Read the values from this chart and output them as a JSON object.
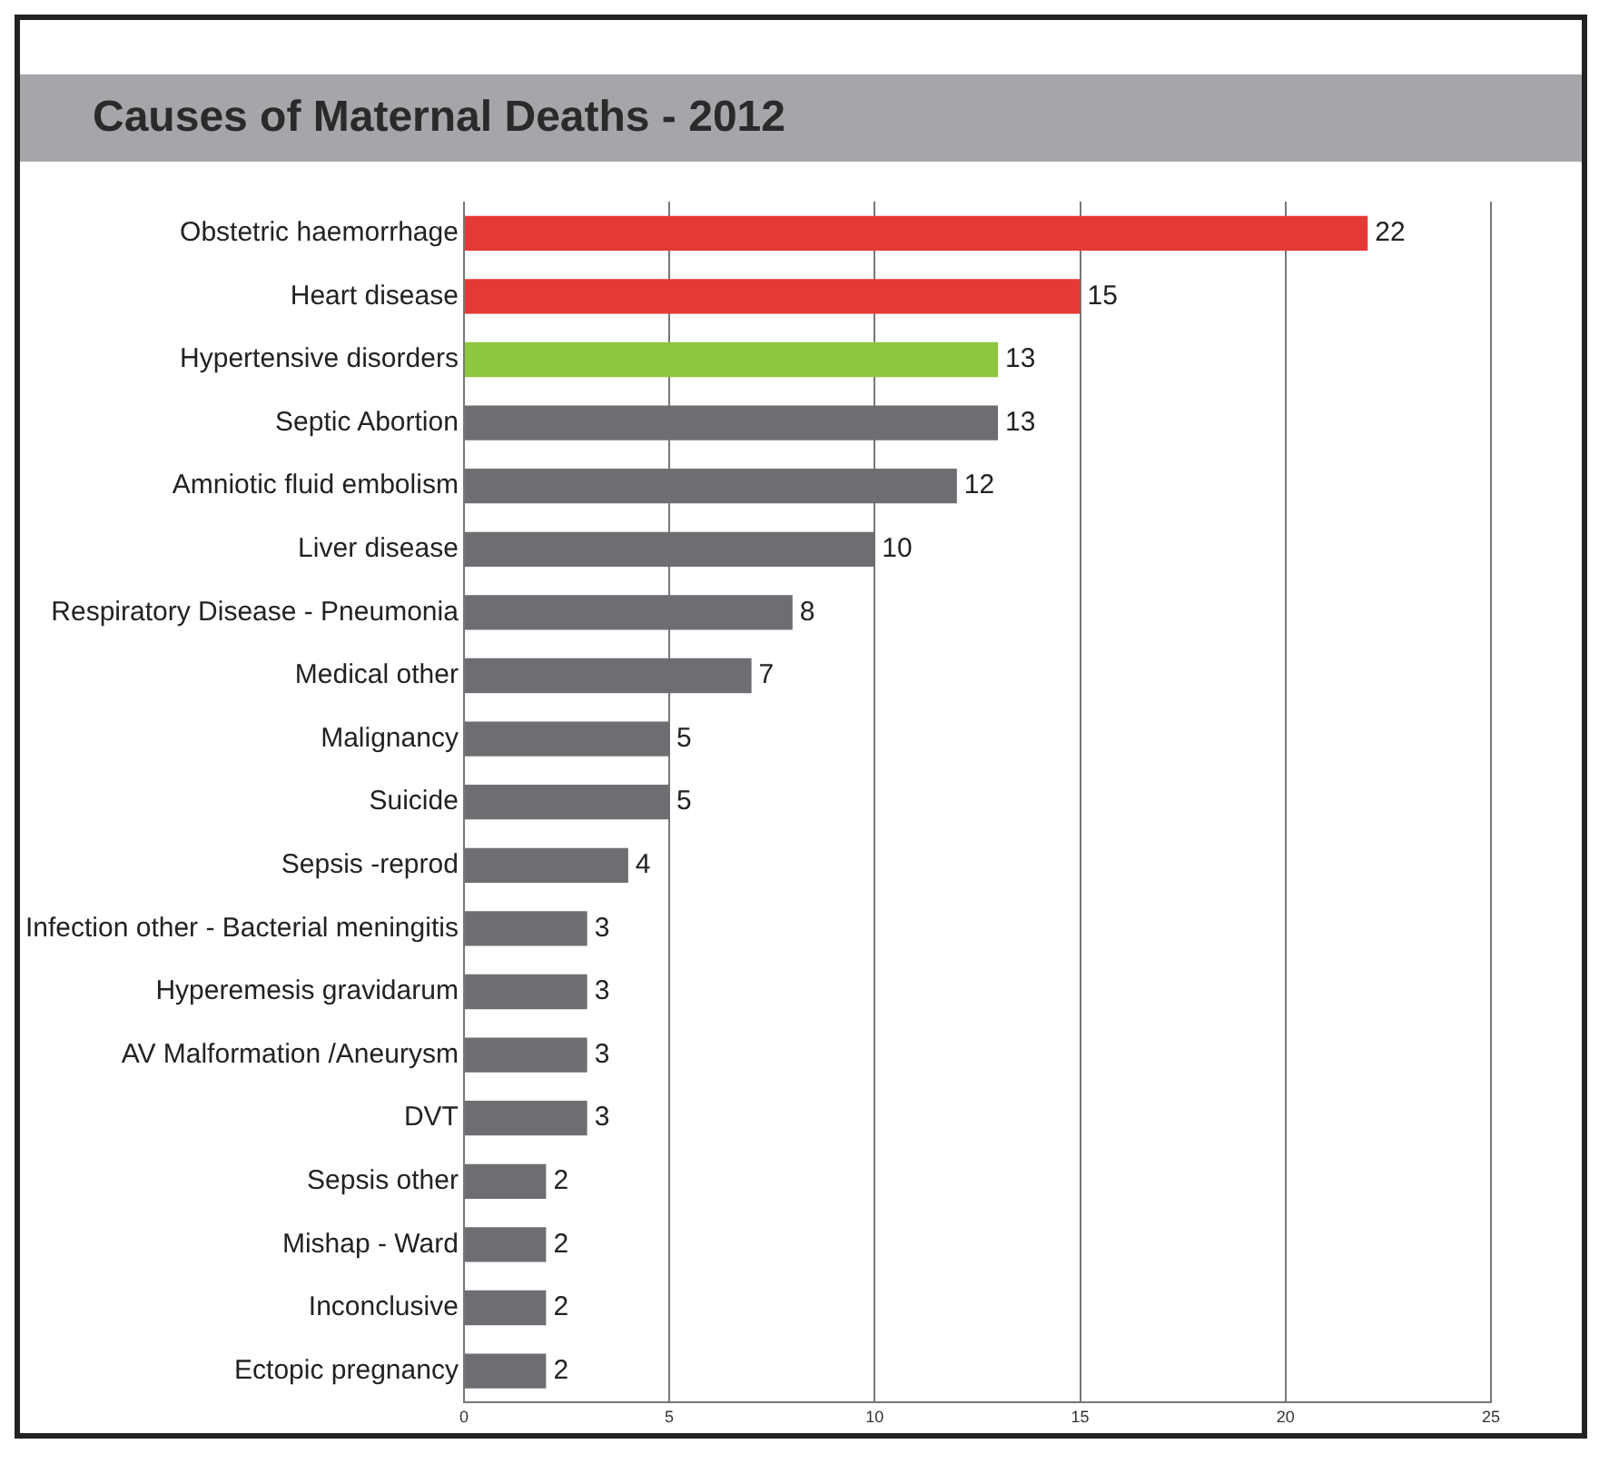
{
  "chart_data": {
    "type": "bar",
    "orientation": "horizontal",
    "title": "Causes of Maternal Deaths - 2012",
    "categories": [
      "Obstetric haemorrhage",
      "Heart disease",
      "Hypertensive disorders",
      "Septic Abortion",
      "Amniotic fluid embolism",
      "Liver disease",
      "Respiratory Disease - Pneumonia",
      "Medical other",
      "Malignancy",
      "Suicide",
      "Sepsis -reprod",
      "Infection other - Bacterial meningitis",
      "Hyperemesis gravidarum",
      "AV Malformation /Aneurysm",
      "DVT",
      "Sepsis other",
      "Mishap - Ward",
      "Inconclusive",
      "Ectopic pregnancy"
    ],
    "values": [
      22,
      15,
      13,
      13,
      12,
      10,
      8,
      7,
      5,
      5,
      4,
      3,
      3,
      3,
      3,
      2,
      2,
      2,
      2
    ],
    "colors": [
      "#e53935",
      "#e53935",
      "#8dc63f",
      "#6d6e71",
      "#6d6e71",
      "#6d6e71",
      "#6d6e71",
      "#6d6e71",
      "#6d6e71",
      "#6d6e71",
      "#6d6e71",
      "#6d6e71",
      "#6d6e71",
      "#6d6e71",
      "#6d6e71",
      "#6d6e71",
      "#6d6e71",
      "#6d6e71",
      "#6d6e71"
    ],
    "xlim": [
      0,
      25
    ],
    "xticks": [
      0,
      5,
      10,
      15,
      20,
      25
    ],
    "grid": "x",
    "data_labels": true
  }
}
